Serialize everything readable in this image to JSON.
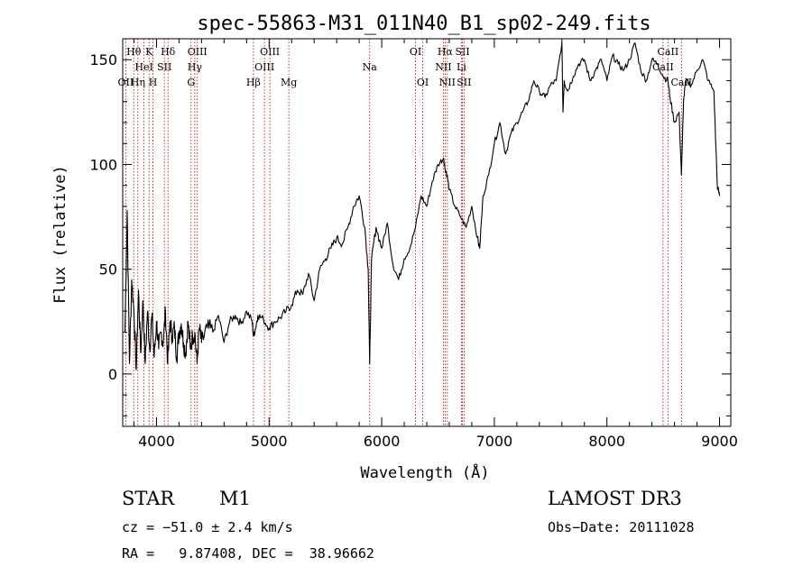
{
  "chart_data": {
    "type": "line",
    "title": "spec-55863-M31_011N40_B1_sp02-249.fits",
    "xlabel": "Wavelength (Å)",
    "ylabel": "Flux (relative)",
    "xlim": [
      3700,
      9100
    ],
    "ylim": [
      -25,
      160
    ],
    "x_ticks": [
      4000,
      5000,
      6000,
      7000,
      8000,
      9000
    ],
    "y_ticks": [
      0,
      50,
      100,
      150
    ],
    "series": [
      {
        "name": "spectrum",
        "x": [
          3720,
          3740,
          3760,
          3780,
          3800,
          3820,
          3840,
          3860,
          3880,
          3900,
          3920,
          3940,
          3960,
          3980,
          4000,
          4020,
          4040,
          4060,
          4080,
          4100,
          4120,
          4140,
          4160,
          4180,
          4200,
          4220,
          4240,
          4260,
          4280,
          4300,
          4320,
          4340,
          4360,
          4380,
          4400,
          4450,
          4500,
          4550,
          4600,
          4650,
          4700,
          4750,
          4800,
          4850,
          4860,
          4880,
          4900,
          4950,
          5000,
          5050,
          5100,
          5150,
          5200,
          5250,
          5300,
          5350,
          5400,
          5450,
          5500,
          5550,
          5600,
          5650,
          5700,
          5750,
          5800,
          5850,
          5880,
          5893,
          5910,
          5950,
          6000,
          6050,
          6100,
          6150,
          6200,
          6250,
          6300,
          6350,
          6400,
          6450,
          6500,
          6550,
          6563,
          6580,
          6600,
          6650,
          6700,
          6750,
          6800,
          6850,
          6870,
          6900,
          6950,
          7000,
          7050,
          7100,
          7150,
          7200,
          7250,
          7300,
          7350,
          7400,
          7450,
          7500,
          7550,
          7600,
          7610,
          7620,
          7650,
          7700,
          7750,
          7800,
          7850,
          7900,
          7950,
          8000,
          8050,
          8100,
          8150,
          8200,
          8250,
          8300,
          8350,
          8400,
          8450,
          8500,
          8542,
          8560,
          8600,
          8640,
          8662,
          8680,
          8700,
          8750,
          8800,
          8850,
          8900,
          8950,
          8980,
          9000
        ],
        "values": [
          20,
          78,
          5,
          45,
          30,
          2,
          40,
          10,
          35,
          5,
          30,
          12,
          28,
          8,
          25,
          12,
          20,
          15,
          30,
          5,
          25,
          18,
          22,
          8,
          20,
          24,
          15,
          10,
          25,
          12,
          18,
          20,
          5,
          22,
          15,
          22,
          20,
          28,
          15,
          25,
          28,
          24,
          30,
          25,
          18,
          22,
          28,
          26,
          22,
          25,
          27,
          30,
          33,
          40,
          38,
          48,
          35,
          50,
          55,
          60,
          65,
          62,
          70,
          80,
          85,
          70,
          50,
          5,
          55,
          70,
          60,
          72,
          52,
          45,
          55,
          60,
          70,
          85,
          80,
          92,
          100,
          103,
          98,
          95,
          88,
          80,
          75,
          70,
          80,
          65,
          60,
          85,
          95,
          110,
          120,
          105,
          115,
          120,
          125,
          130,
          140,
          135,
          132,
          138,
          140,
          158,
          125,
          140,
          135,
          142,
          148,
          150,
          140,
          145,
          150,
          140,
          152,
          148,
          145,
          150,
          158,
          145,
          140,
          150,
          148,
          142,
          140,
          132,
          120,
          125,
          95,
          130,
          140,
          138,
          145,
          150,
          140,
          135,
          90,
          85
        ]
      }
    ],
    "lines": {
      "emission": [
        {
          "label": "OII",
          "x": 3727,
          "row": 3
        },
        {
          "label": "Hθ",
          "x": 3798,
          "row": 1
        },
        {
          "label": "Hη",
          "x": 3835,
          "row": 3
        },
        {
          "label": "HeI",
          "x": 3889,
          "row": 2
        },
        {
          "label": "K",
          "x": 3934,
          "row": 1
        },
        {
          "label": "H",
          "x": 3969,
          "row": 3
        },
        {
          "label": "SII",
          "x": 4070,
          "row": 2
        },
        {
          "label": "Hδ",
          "x": 4102,
          "row": 1
        },
        {
          "label": "OIII",
          "x": 4363,
          "row": 1
        },
        {
          "label": "Hγ",
          "x": 4340,
          "row": 2
        },
        {
          "label": "G",
          "x": 4307,
          "row": 3
        },
        {
          "label": "Hβ",
          "x": 4861,
          "row": 3
        },
        {
          "label": "OIII",
          "x": 4959,
          "row": 2
        },
        {
          "label": "OIII",
          "x": 5007,
          "row": 1
        },
        {
          "label": "Mg",
          "x": 5175,
          "row": 3
        },
        {
          "label": "Na",
          "x": 5893,
          "row": 2
        },
        {
          "label": "OI",
          "x": 6300,
          "row": 1
        },
        {
          "label": "OI",
          "x": 6364,
          "row": 3
        },
        {
          "label": "Hα",
          "x": 6563,
          "row": 1
        },
        {
          "label": "NII",
          "x": 6548,
          "row": 2
        },
        {
          "label": "NII",
          "x": 6583,
          "row": 3
        },
        {
          "label": "SII",
          "x": 6717,
          "row": 1
        },
        {
          "label": "Li",
          "x": 6708,
          "row": 2
        },
        {
          "label": "SII",
          "x": 6731,
          "row": 3
        },
        {
          "label": "CaII",
          "x": 8542,
          "row": 1
        },
        {
          "label": "CaII",
          "x": 8498,
          "row": 2
        },
        {
          "label": "CaII",
          "x": 8662,
          "row": 3
        }
      ]
    },
    "legend": "none",
    "grid": false
  },
  "footer": {
    "class_label": "STAR",
    "subclass": "M1",
    "survey": "LAMOST DR3",
    "cz": "cz = −51.0 ± 2.4 km/s",
    "obs_date": "Obs−Date: 20111028",
    "radec": "RA =   9.87408, DEC =  38.96662"
  }
}
